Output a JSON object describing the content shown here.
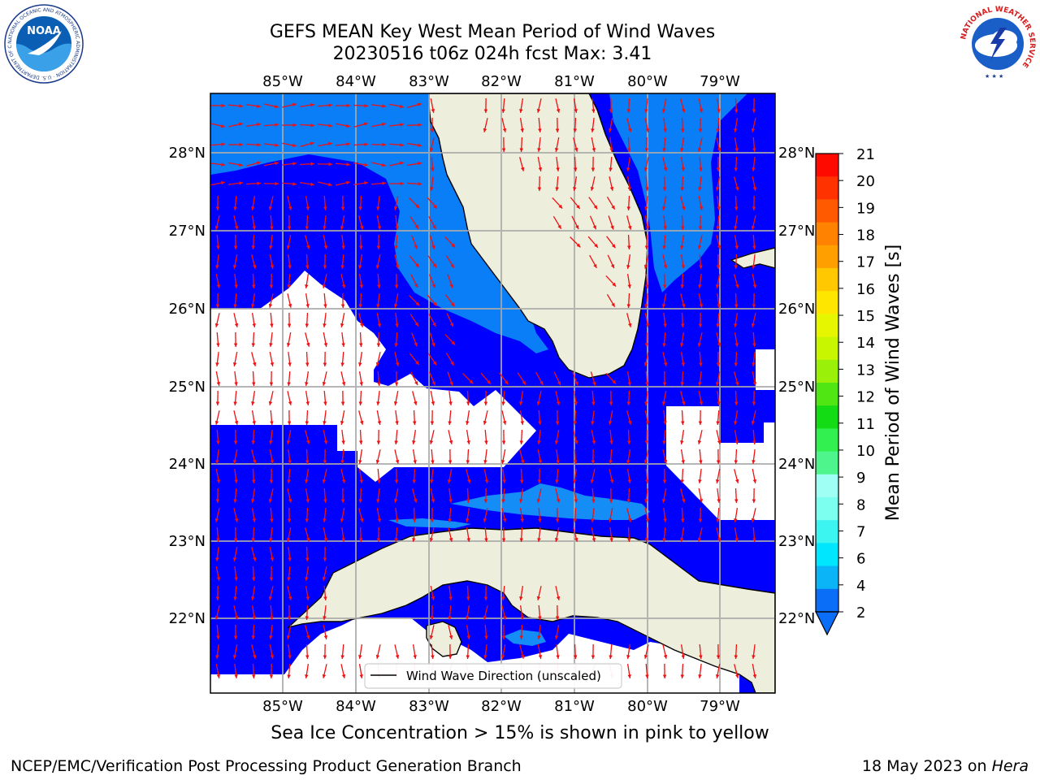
{
  "title": {
    "line1": "GEFS MEAN Key West Mean Period of Wind Waves",
    "line2": "20230516 t06z 024h fcst    Max: 3.41"
  },
  "map": {
    "lon_labels": [
      "85°W",
      "84°W",
      "83°W",
      "82°W",
      "81°W",
      "80°W",
      "79°W"
    ],
    "lat_labels": [
      "28°N",
      "27°N",
      "26°N",
      "25°N",
      "24°N",
      "23°N",
      "22°N"
    ],
    "legend_label": "Wind Wave Direction (unscaled)",
    "colors": {
      "land": "#eeeedd",
      "ocean_low": "#0000ff",
      "ocean_mid": "#0a7ef7",
      "ocean_light": "#148df7",
      "arrows": "#ee1111"
    }
  },
  "colorbar": {
    "label": "Mean Period of Wind Waves [s]",
    "ticks": [
      "2",
      "4",
      "6",
      "7",
      "8",
      "9",
      "10",
      "11",
      "12",
      "13",
      "14",
      "15",
      "16",
      "17",
      "18",
      "19",
      "20",
      "21"
    ],
    "colors": [
      "#0a6ef7",
      "#0ab4f7",
      "#00e6ff",
      "#3cf5f0",
      "#7dfff0",
      "#a0fff5",
      "#4ef58c",
      "#32f050",
      "#14dc14",
      "#50e614",
      "#9bf00a",
      "#c8f500",
      "#e6f500",
      "#ffe600",
      "#ffc800",
      "#ffa000",
      "#ff8200",
      "#ff5a00",
      "#ff3200",
      "#ff0a00"
    ]
  },
  "logos": {
    "noaa_text": "NOAA",
    "noaa_ring": "NATIONAL OCEANIC AND ATMOSPHERIC ADMINISTRATION · U.S. DEPARTMENT OF COMMERCE",
    "nws_ring": "NATIONAL WEATHER SERVICE"
  },
  "footer": {
    "ice_note": "Sea Ice Concentration > 15% is shown in pink to yellow",
    "credit": "NCEP/EMC/Verification Post Processing Product Generation Branch",
    "date_prefix": "18 May 2023 on ",
    "date_host": "Hera"
  }
}
